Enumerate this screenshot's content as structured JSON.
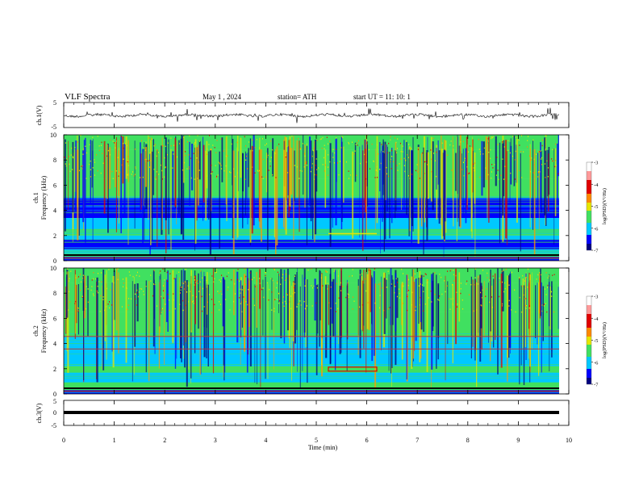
{
  "header": {
    "title": "VLF  Spectra",
    "date": "May 1  , 2024",
    "station": "station= ATH",
    "start": "start  UT  =    11: 10: 1"
  },
  "chart_data": [
    {
      "type": "line",
      "panel": "ch1-waveform",
      "ylabel": "ch.1(V)",
      "ylim": [
        -5,
        5
      ],
      "yticks": [
        "5",
        "-5"
      ],
      "xlim": [
        0,
        10
      ],
      "description_values": {
        "baseline_v": 0,
        "noise_amplitude_v": 1.2
      }
    },
    {
      "type": "heatmap",
      "panel": "ch1-spectrogram",
      "ylabel": "ch.1\nFrequency  (kHz)",
      "ylabel_top": "ch.1",
      "ylabel_bottom": "Frequency  (kHz)",
      "ylim": [
        0,
        10
      ],
      "yticks": [
        "0",
        "2",
        "4",
        "6",
        "8",
        "10"
      ],
      "xlim": [
        0,
        10
      ],
      "colorbar": {
        "label": "log(PSD)(V²/Hz)",
        "min": -7,
        "max": -3,
        "ticks": [
          "-3",
          "-4",
          "-5",
          "-6",
          "-7"
        ]
      }
    },
    {
      "type": "heatmap",
      "panel": "ch2-spectrogram",
      "ylabel_top": "ch.2",
      "ylabel_bottom": "Frequency  (kHz)",
      "ylim": [
        0,
        10
      ],
      "yticks": [
        "0",
        "2",
        "4",
        "6",
        "8",
        "10"
      ],
      "xlim": [
        0,
        10
      ],
      "colorbar": {
        "label": "log(PSD)(V²/Hz)",
        "min": -7,
        "max": -3,
        "ticks": [
          "-3",
          "-4",
          "-5",
          "-6",
          "-7"
        ]
      }
    },
    {
      "type": "line",
      "panel": "ch3-waveform",
      "ylabel": "ch.3(V)",
      "ylim": [
        -5,
        5
      ],
      "yticks": [
        "5",
        "0",
        "-5"
      ],
      "xlim": [
        0,
        10
      ],
      "description_values": {
        "baseline_v": 0
      }
    }
  ],
  "xaxis": {
    "label": "Time  (min)",
    "ticks": [
      "0",
      "1",
      "2",
      "3",
      "4",
      "5",
      "6",
      "7",
      "8",
      "9",
      "10"
    ]
  },
  "colors": {
    "deep_blue": "#00007f",
    "blue": "#0000ff",
    "cyan": "#00c8ff",
    "green": "#40e060",
    "yellow": "#e6e600",
    "red": "#e00000"
  }
}
